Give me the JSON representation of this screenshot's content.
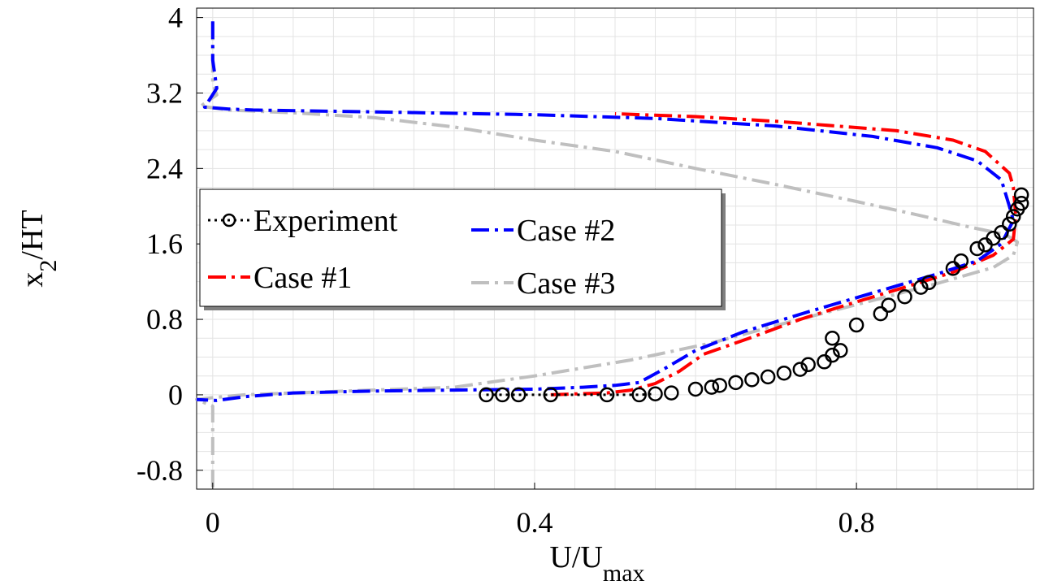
{
  "chart_data": {
    "type": "line",
    "title": "",
    "xlabel": "U/U",
    "xlabel_sub": "max",
    "ylabel": "x",
    "ylabel_sub": "2",
    "ylabel_suffix": "/HT",
    "xlim": [
      -0.02,
      1.02
    ],
    "ylim": [
      -1.0,
      4.1
    ],
    "grid": true,
    "legend_placement": "upper-left",
    "x_ticks": [
      {
        "value": 0,
        "label": "0"
      },
      {
        "value": 0.4,
        "label": "0.4"
      },
      {
        "value": 0.8,
        "label": "0.8"
      }
    ],
    "y_ticks": [
      {
        "value": 4,
        "label": "4"
      },
      {
        "value": 3.2,
        "label": "3.2"
      },
      {
        "value": 2.4,
        "label": "2.4"
      },
      {
        "value": 1.6,
        "label": "1.6"
      },
      {
        "value": 0.8,
        "label": "0.8"
      },
      {
        "value": 0,
        "label": "0"
      },
      {
        "value": -0.8,
        "label": "-0.8"
      }
    ],
    "series": [
      {
        "name": "Experiment",
        "color": "#000000",
        "style": "dotted-circles",
        "points": [
          [
            0.34,
            0.0
          ],
          [
            0.36,
            0.0
          ],
          [
            0.38,
            0.0
          ],
          [
            0.42,
            0.0
          ],
          [
            0.49,
            0.0
          ],
          [
            0.53,
            0.0
          ],
          [
            0.55,
            0.01
          ],
          [
            0.57,
            0.02
          ],
          [
            0.6,
            0.06
          ],
          [
            0.62,
            0.08
          ],
          [
            0.63,
            0.1
          ],
          [
            0.65,
            0.13
          ],
          [
            0.67,
            0.16
          ],
          [
            0.69,
            0.19
          ],
          [
            0.71,
            0.23
          ],
          [
            0.73,
            0.27
          ],
          [
            0.74,
            0.32
          ],
          [
            0.76,
            0.35
          ],
          [
            0.77,
            0.42
          ],
          [
            0.78,
            0.47
          ],
          [
            0.77,
            0.6
          ],
          [
            0.8,
            0.74
          ],
          [
            0.83,
            0.86
          ],
          [
            0.84,
            0.95
          ],
          [
            0.86,
            1.04
          ],
          [
            0.88,
            1.14
          ],
          [
            0.89,
            1.19
          ],
          [
            0.92,
            1.34
          ],
          [
            0.93,
            1.42
          ],
          [
            0.95,
            1.55
          ],
          [
            0.96,
            1.59
          ],
          [
            0.97,
            1.66
          ],
          [
            0.98,
            1.72
          ],
          [
            0.99,
            1.81
          ],
          [
            0.995,
            1.89
          ],
          [
            1.0,
            1.97
          ],
          [
            1.005,
            2.03
          ],
          [
            1.005,
            2.12
          ]
        ]
      },
      {
        "name": "Case #1",
        "color": "#ff0000",
        "style": "dashdot",
        "points": [
          [
            0.42,
            0.0
          ],
          [
            0.45,
            0.01
          ],
          [
            0.49,
            0.02
          ],
          [
            0.52,
            0.05
          ],
          [
            0.55,
            0.12
          ],
          [
            0.58,
            0.25
          ],
          [
            0.61,
            0.43
          ],
          [
            0.67,
            0.61
          ],
          [
            0.73,
            0.8
          ],
          [
            0.79,
            0.96
          ],
          [
            0.86,
            1.14
          ],
          [
            0.92,
            1.3
          ],
          [
            0.97,
            1.48
          ],
          [
            0.995,
            1.65
          ],
          [
            0.998,
            1.9
          ],
          [
            0.995,
            2.2
          ],
          [
            0.99,
            2.35
          ],
          [
            0.96,
            2.58
          ],
          [
            0.92,
            2.7
          ],
          [
            0.85,
            2.8
          ],
          [
            0.7,
            2.9
          ],
          [
            0.6,
            2.95
          ],
          [
            0.5,
            2.98
          ]
        ]
      },
      {
        "name": "Case #2",
        "color": "#0000ff",
        "style": "dashdot",
        "points": [
          [
            0.0,
            3.96
          ],
          [
            0.0,
            3.55
          ],
          [
            0.005,
            3.25
          ],
          [
            -0.01,
            3.05
          ],
          [
            0.02,
            3.03
          ],
          [
            0.05,
            3.02
          ],
          [
            0.2,
            3.0
          ],
          [
            0.4,
            2.97
          ],
          [
            0.55,
            2.93
          ],
          [
            0.7,
            2.85
          ],
          [
            0.82,
            2.74
          ],
          [
            0.9,
            2.62
          ],
          [
            0.95,
            2.48
          ],
          [
            0.98,
            2.28
          ],
          [
            0.99,
            2.0
          ],
          [
            0.995,
            1.85
          ],
          [
            0.98,
            1.6
          ],
          [
            0.95,
            1.42
          ],
          [
            0.9,
            1.28
          ],
          [
            0.82,
            1.08
          ],
          [
            0.74,
            0.88
          ],
          [
            0.66,
            0.67
          ],
          [
            0.6,
            0.47
          ],
          [
            0.56,
            0.27
          ],
          [
            0.53,
            0.13
          ],
          [
            0.5,
            0.1
          ],
          [
            0.46,
            0.08
          ],
          [
            0.4,
            0.06
          ],
          [
            0.3,
            0.05
          ],
          [
            0.2,
            0.04
          ],
          [
            0.1,
            0.02
          ],
          [
            0.04,
            -0.02
          ],
          [
            0.005,
            -0.06
          ],
          [
            -0.02,
            -0.05
          ]
        ]
      },
      {
        "name": "Case #3",
        "color": "#bfbfbf",
        "style": "dashdot",
        "points": [
          [
            0.0,
            3.95
          ],
          [
            0.0,
            3.3
          ],
          [
            0.005,
            3.18
          ],
          [
            -0.015,
            3.06
          ],
          [
            0.02,
            3.02
          ],
          [
            0.1,
            2.99
          ],
          [
            0.2,
            2.94
          ],
          [
            0.3,
            2.84
          ],
          [
            0.4,
            2.7
          ],
          [
            0.5,
            2.58
          ],
          [
            0.6,
            2.4
          ],
          [
            0.7,
            2.23
          ],
          [
            0.8,
            2.05
          ],
          [
            0.88,
            1.9
          ],
          [
            0.94,
            1.78
          ],
          [
            0.985,
            1.7
          ],
          [
            1.0,
            1.62
          ],
          [
            0.995,
            1.48
          ],
          [
            0.97,
            1.35
          ],
          [
            0.9,
            1.18
          ],
          [
            0.82,
            1.0
          ],
          [
            0.72,
            0.78
          ],
          [
            0.62,
            0.55
          ],
          [
            0.52,
            0.37
          ],
          [
            0.4,
            0.2
          ],
          [
            0.3,
            0.08
          ],
          [
            0.2,
            0.05
          ],
          [
            0.1,
            0.02
          ],
          [
            0.04,
            0.0
          ],
          [
            0.0,
            -0.03
          ],
          [
            -0.02,
            -0.05
          ],
          [
            0.0,
            -0.12
          ],
          [
            0.0,
            -0.8
          ],
          [
            0.0,
            -0.98
          ]
        ]
      }
    ]
  },
  "legend": [
    {
      "name": "Experiment",
      "color": "#000000",
      "style": "dotted-circles"
    },
    {
      "name": "Case #2",
      "color": "#0000ff",
      "style": "dashdot"
    },
    {
      "name": "Case #1",
      "color": "#ff0000",
      "style": "dashdot"
    },
    {
      "name": "Case #3",
      "color": "#bfbfbf",
      "style": "dashdot"
    }
  ]
}
